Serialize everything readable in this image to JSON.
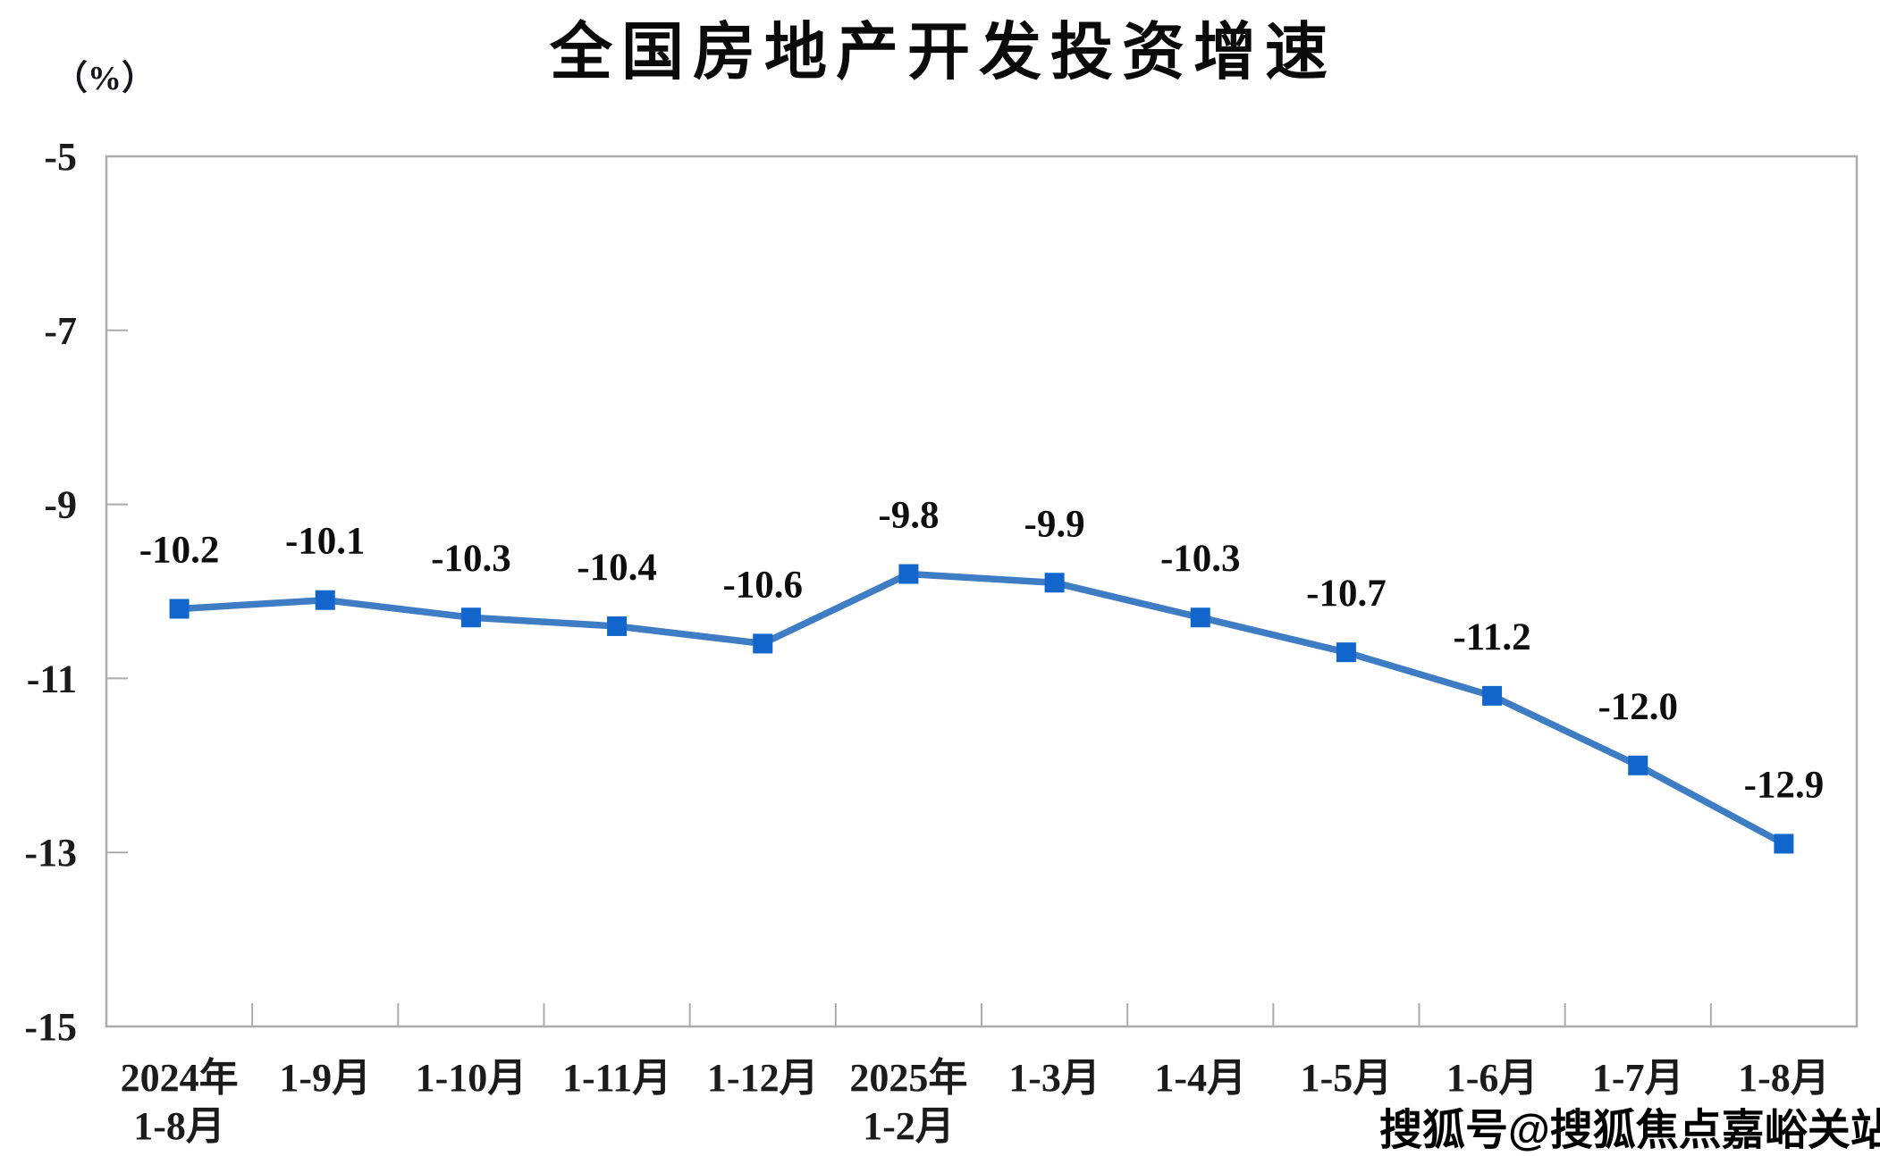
{
  "watermark": "搜狐号@搜狐焦点嘉峪关站",
  "colors": {
    "background": "#FFFFFF",
    "line": "#3E7CC4",
    "marker": "#1266CB",
    "axis": "#ACACAC",
    "tick_text": "#1B1B1B",
    "label_text": "#0D0D0D"
  },
  "chart_data": {
    "type": "line",
    "title": "全国房地产开发投资增速",
    "unit_label": "（%）",
    "categories": [
      [
        "2024年",
        "1-8月"
      ],
      [
        "1-9月"
      ],
      [
        "1-10月"
      ],
      [
        "1-11月"
      ],
      [
        "1-12月"
      ],
      [
        "2025年",
        "1-2月"
      ],
      [
        "1-3月"
      ],
      [
        "1-4月"
      ],
      [
        "1-5月"
      ],
      [
        "1-6月"
      ],
      [
        "1-7月"
      ],
      [
        "1-8月"
      ]
    ],
    "values": [
      -10.2,
      -10.1,
      -10.3,
      -10.4,
      -10.6,
      -9.8,
      -9.9,
      -10.3,
      -10.7,
      -11.2,
      -12.0,
      -12.9
    ],
    "point_labels": [
      "-10.2",
      "-10.1",
      "-10.3",
      "-10.4",
      "-10.6",
      "-9.8",
      "-9.9",
      "-10.3",
      "-10.7",
      "-11.2",
      "-12.0",
      "-12.9"
    ],
    "y_ticks": [
      -5,
      -7,
      -9,
      -11,
      -13,
      -15
    ],
    "y_tick_labels": [
      "-5",
      "-7",
      "-9",
      "-11",
      "-13",
      "-15"
    ],
    "ylim": [
      -15,
      -5
    ],
    "xlabel": "",
    "ylabel": "（%）",
    "grid": false,
    "legend": false,
    "marker_shape": "square"
  }
}
